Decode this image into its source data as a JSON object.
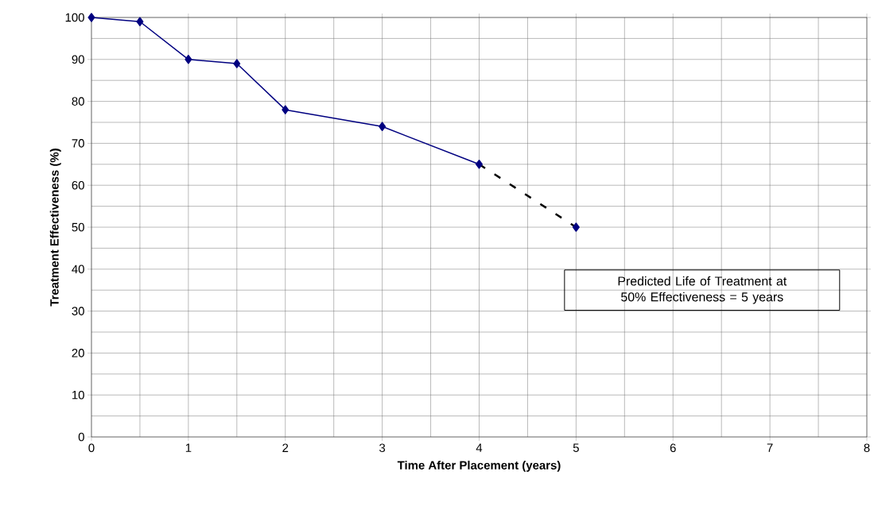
{
  "chart_data": {
    "type": "line",
    "xlabel": "Time After Placement (years)",
    "ylabel": "Treatment Effectiveness (%)",
    "xlim": [
      0,
      8
    ],
    "xticks": [
      0,
      1,
      2,
      3,
      4,
      5,
      6,
      7,
      8
    ],
    "ylim": [
      0,
      100
    ],
    "yticks": [
      0,
      10,
      20,
      30,
      40,
      50,
      60,
      70,
      80,
      90,
      100
    ],
    "grid": true,
    "series": [
      {
        "color": "#000080",
        "x": [
          0,
          0.5,
          1,
          1.5,
          2,
          3,
          4
        ],
        "values": [
          100,
          99,
          90,
          89,
          78,
          74,
          65
        ],
        "marker": "diamond",
        "line_style": "solid"
      },
      {
        "color": "#000000",
        "x": [
          4,
          5
        ],
        "values": [
          65,
          50
        ],
        "marker": "none",
        "line_style": "dashed"
      },
      {
        "type": "scatter",
        "color": "#000080",
        "x": [
          5
        ],
        "values": [
          50
        ],
        "marker": "diamond"
      }
    ],
    "annotations": [
      "Predicted Life of Treatment at 50% Effectiveness = 5 years"
    ]
  }
}
